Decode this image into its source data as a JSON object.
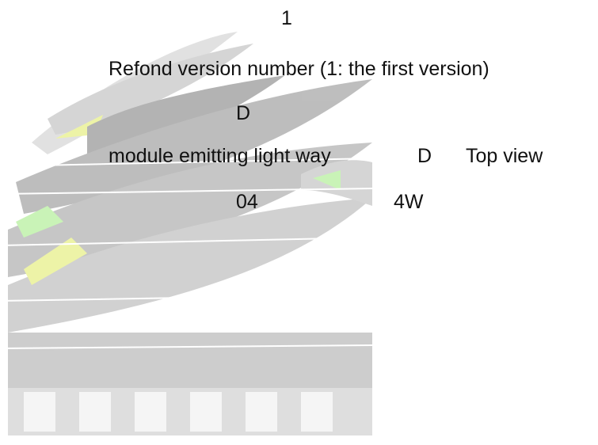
{
  "lines": [
    {
      "segments": [
        {
          "text": "1"
        }
      ]
    },
    {
      "segments": [
        {
          "text": "Refond version number (1: the first version)"
        }
      ]
    },
    {
      "segments": [
        {
          "text": "D"
        }
      ]
    },
    {
      "segments": [
        {
          "text": "module emitting light way"
        },
        {
          "text": "D"
        },
        {
          "text": "Top view"
        }
      ]
    },
    {
      "segments": [
        {
          "text": "04"
        },
        {
          "text": "4W"
        }
      ]
    }
  ]
}
